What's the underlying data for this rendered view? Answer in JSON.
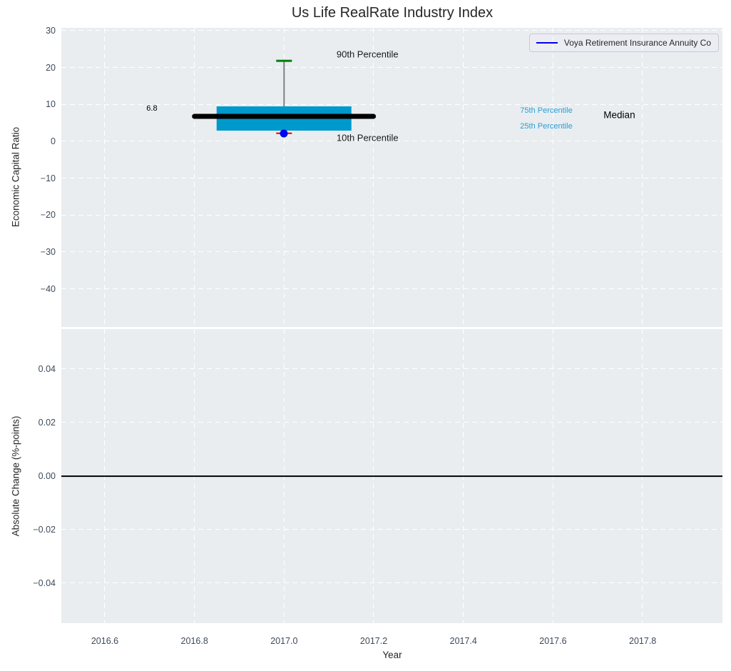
{
  "title": "Us Life RealRate Industry Index",
  "legend": {
    "label": "Voya Retirement Insurance Annuity Co",
    "line_color": "#0000ee"
  },
  "colors": {
    "plot_background": "#e9edf0",
    "grid": "#ffffff",
    "box_fill": "#0099cc",
    "median_line": "#000000",
    "p90_cap": "#008000",
    "p10_cap": "#e60000",
    "company_dot": "#0000ee",
    "whisker": "#828282",
    "tick_text": "#3d4a5a",
    "blue_label": "#2b9ed4",
    "zero_line": "#000000"
  },
  "chart_data": [
    {
      "type": "boxplot",
      "title": "Us Life RealRate Industry Index",
      "ylabel": "Economic Capital Ratio",
      "xlim": [
        2016.503,
        2017.978
      ],
      "ylim": [
        -50.3,
        30.8
      ],
      "grid": true,
      "yticks": [
        {
          "v": 30,
          "label": "30"
        },
        {
          "v": 20,
          "label": "20"
        },
        {
          "v": 10,
          "label": "10"
        },
        {
          "v": 0,
          "label": "0"
        },
        {
          "v": -10,
          "label": "−10"
        },
        {
          "v": -20,
          "label": "−20"
        },
        {
          "v": -30,
          "label": "−30"
        },
        {
          "v": -40,
          "label": "−40"
        }
      ],
      "xticks": [
        {
          "v": 2016.6,
          "label": "2016.6"
        },
        {
          "v": 2016.8,
          "label": "2016.8"
        },
        {
          "v": 2017.0,
          "label": "2017.0"
        },
        {
          "v": 2017.2,
          "label": "2017.2"
        },
        {
          "v": 2017.4,
          "label": "2017.4"
        },
        {
          "v": 2017.6,
          "label": "2017.6"
        },
        {
          "v": 2017.8,
          "label": "2017.8"
        }
      ],
      "box": {
        "x": 2017.0,
        "p90": 21.8,
        "p75": 9.5,
        "median": 6.8,
        "p25": 2.9,
        "p10": 2.2,
        "box_half_width_years": 0.15,
        "median_half_width_years": 0.205,
        "cap_half_width_years": 0.017
      },
      "company_point": {
        "x": 2017.0,
        "y": 2.2,
        "series": "Voya Retirement Insurance Annuity Co"
      },
      "annotations": [
        {
          "text": "90th Percentile",
          "x": 2017.186,
          "y": 23.6,
          "color": "#1a1a1a",
          "size": 13
        },
        {
          "text": "10th Percentile",
          "x": 2017.186,
          "y": 1.0,
          "color": "#1a1a1a",
          "size": 13
        },
        {
          "text": "75th Percentile",
          "x": 2017.585,
          "y": 8.3,
          "color": "#2b9ed4",
          "size": 11
        },
        {
          "text": "25th Percentile",
          "x": 2017.585,
          "y": 4.1,
          "color": "#2b9ed4",
          "size": 11
        },
        {
          "text": "Median",
          "x": 2017.748,
          "y": 7.15,
          "color": "#000000",
          "size": 13.5
        },
        {
          "text": "6.8",
          "x": 2016.705,
          "y": 8.9,
          "color": "#000000",
          "size": 11
        }
      ],
      "legend_entries": [
        "Voya Retirement Insurance Annuity Co"
      ]
    },
    {
      "type": "line",
      "ylabel": "Absolute Change (%-points)",
      "xlabel": "Year",
      "xlim": [
        2016.503,
        2017.978
      ],
      "ylim": [
        -0.055,
        0.055
      ],
      "grid": true,
      "yticks": [
        {
          "v": 0.04,
          "label": "0.04"
        },
        {
          "v": 0.02,
          "label": "0.02"
        },
        {
          "v": 0.0,
          "label": "0.00"
        },
        {
          "v": -0.02,
          "label": "−0.02"
        },
        {
          "v": -0.04,
          "label": "−0.04"
        }
      ],
      "xticks": [
        {
          "v": 2016.6,
          "label": "2016.6"
        },
        {
          "v": 2016.8,
          "label": "2016.8"
        },
        {
          "v": 2017.0,
          "label": "2017.0"
        },
        {
          "v": 2017.2,
          "label": "2017.2"
        },
        {
          "v": 2017.4,
          "label": "2017.4"
        },
        {
          "v": 2017.6,
          "label": "2017.6"
        },
        {
          "v": 2017.8,
          "label": "2017.8"
        }
      ],
      "zero_line_y": 0.0
    }
  ]
}
